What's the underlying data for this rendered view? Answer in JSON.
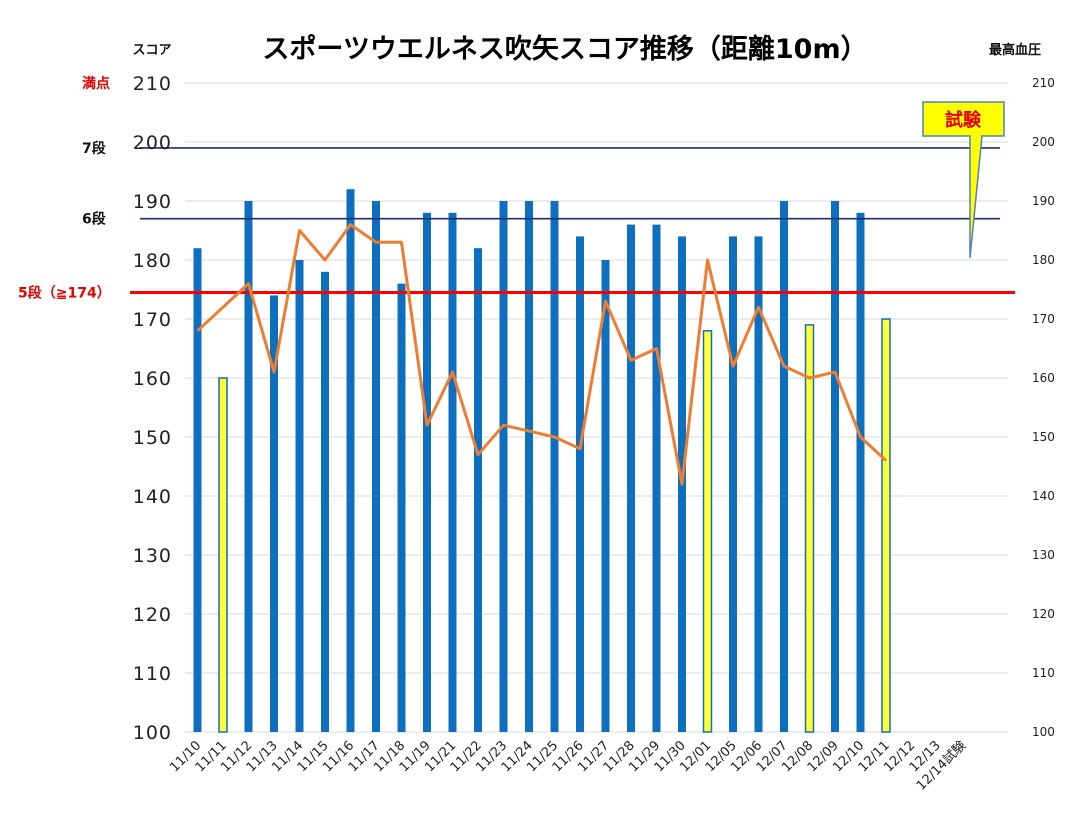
{
  "chart_data": {
    "type": "bar",
    "title": "スポーツウエルネス吹矢スコア推移（距離10m）",
    "ylabel": "スコア",
    "y2label": "最高血圧",
    "ylim": [
      100,
      210
    ],
    "y2lim": [
      100,
      210
    ],
    "yticks": [
      "100",
      "110",
      "120",
      "130",
      "140",
      "150",
      "160",
      "170",
      "180",
      "190",
      "200",
      "210"
    ],
    "grid": true,
    "categories": [
      "11/10",
      "11/11",
      "11/12",
      "11/13",
      "11/14",
      "11/15",
      "11/16",
      "11/17",
      "11/18",
      "11/19",
      "11/21",
      "11/22",
      "11/23",
      "11/24",
      "11/25",
      "11/26",
      "11/27",
      "11/28",
      "11/29",
      "11/30",
      "12/01",
      "12/05",
      "12/06",
      "12/07",
      "12/08",
      "12/09",
      "12/10",
      "12/11",
      "12/12",
      "12/13",
      "12/14試験"
    ],
    "series": [
      {
        "kind": "bar",
        "values": [
          182,
          160,
          190,
          174,
          180,
          178,
          192,
          190,
          176,
          188,
          188,
          182,
          190,
          190,
          190,
          184,
          180,
          186,
          186,
          184,
          168,
          184,
          184,
          190,
          169,
          190,
          188,
          170,
          null,
          null,
          null
        ],
        "highlight": [
          false,
          true,
          false,
          false,
          false,
          false,
          false,
          false,
          false,
          false,
          false,
          false,
          false,
          false,
          false,
          false,
          false,
          false,
          false,
          false,
          true,
          false,
          false,
          false,
          true,
          false,
          false,
          true,
          false,
          false,
          false
        ],
        "color": "#0c6fc0",
        "highlight_color": "#ffff33"
      },
      {
        "kind": "line",
        "axis": "right",
        "values": [
          168,
          null,
          176,
          161,
          185,
          180,
          186,
          183,
          183,
          152,
          161,
          147,
          152,
          151,
          150,
          148,
          173,
          163,
          165,
          142,
          180,
          162,
          172,
          162,
          160,
          161,
          150,
          146,
          null,
          null,
          null
        ],
        "color": "#ed7d31"
      }
    ],
    "reference_lines": [
      {
        "label": "満点",
        "value": 210,
        "color": "#bfbfbf",
        "label_color": "#e60000"
      },
      {
        "label": "7段",
        "value": 199,
        "color": "#1f2d6b",
        "label_color": "#111111"
      },
      {
        "label": "6段",
        "value": 187,
        "color": "#1f2d6b",
        "label_color": "#111111"
      },
      {
        "label": "5段（≧174）",
        "value": 174.5,
        "color": "#ff0000",
        "label_color": "#e60000"
      }
    ],
    "callout": {
      "text": "試験",
      "fill": "#ffff00",
      "stroke": "#4f81bd"
    }
  }
}
